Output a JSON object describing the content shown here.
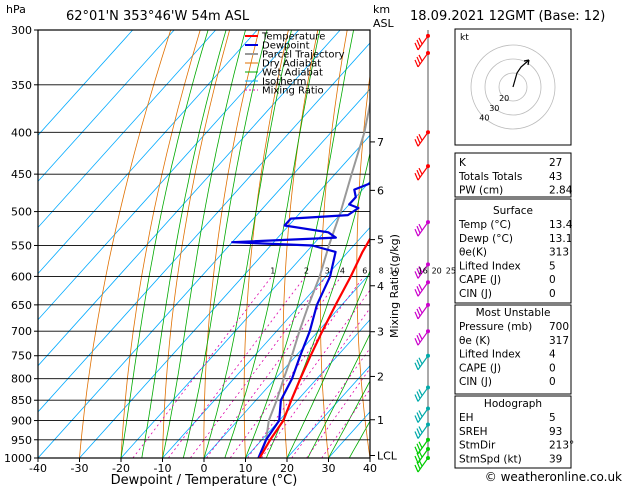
{
  "header": {
    "location": "62°01'N  353°46'W  54m  ASL",
    "datetime": "18.09.2021  12GMT  (Base: 12)",
    "hpa_unit": "hPa",
    "km_unit": "km",
    "asl_unit": "ASL"
  },
  "footer": {
    "copyright": "© weatheronline.co.uk"
  },
  "colors": {
    "temperature": "#ff0000",
    "dewpoint": "#0000dd",
    "parcel": "#999999",
    "dry_adiabat": "#e07000",
    "wet_adiabat": "#00aa00",
    "isotherm": "#00aaff",
    "mixing_ratio": "#dd00aa",
    "wind_cyan": "#00aaaa",
    "wind_green": "#00cc00",
    "wind_magenta": "#cc00cc",
    "wind_red": "#ff0000"
  },
  "chart_data": {
    "type": "skew-t",
    "xlabel": "Dewpoint / Temperature (°C)",
    "ylabel_right": "Mixing Ratio (g/kg)",
    "x_ticks": [
      -40,
      -30,
      -20,
      -10,
      0,
      10,
      20,
      30,
      40
    ],
    "pressure_levels": [
      300,
      350,
      400,
      450,
      500,
      550,
      600,
      650,
      700,
      750,
      800,
      850,
      900,
      950,
      1000
    ],
    "km_ticks": [
      {
        "label": "7",
        "p": 411
      },
      {
        "label": "6",
        "p": 471
      },
      {
        "label": "5",
        "p": 541
      },
      {
        "label": "4",
        "p": 616
      },
      {
        "label": "3",
        "p": 701
      },
      {
        "label": "2",
        "p": 795
      },
      {
        "label": "1",
        "p": 898
      },
      {
        "label": "LCL",
        "p": 993
      }
    ],
    "mixing_ratio_labels": [
      "1",
      "2",
      "3",
      "4",
      "6",
      "8",
      "10",
      "16",
      "20",
      "25"
    ],
    "legend": [
      "Temperature",
      "Dewpoint",
      "Parcel Trajectory",
      "Dry Adiabat",
      "Wet Adiabat",
      "Isotherm",
      "Mixing Ratio"
    ],
    "temperature": [
      [
        1000,
        13.4
      ],
      [
        950,
        12
      ],
      [
        900,
        11
      ],
      [
        850,
        8.5
      ],
      [
        800,
        6
      ],
      [
        750,
        3.5
      ],
      [
        700,
        1
      ],
      [
        650,
        -1.5
      ],
      [
        600,
        -4
      ],
      [
        560,
        -6.5
      ],
      [
        520,
        -8.5
      ],
      [
        500,
        -8
      ],
      [
        490,
        -8
      ],
      [
        480,
        -8.5
      ],
      [
        470,
        -4
      ],
      [
        465,
        -10
      ],
      [
        450,
        -12
      ],
      [
        420,
        -15
      ],
      [
        400,
        -18
      ],
      [
        350,
        -27
      ],
      [
        300,
        -36
      ]
    ],
    "dewpoint": [
      [
        1000,
        13.1
      ],
      [
        950,
        11
      ],
      [
        900,
        10
      ],
      [
        850,
        6
      ],
      [
        800,
        4
      ],
      [
        750,
        1
      ],
      [
        700,
        -2
      ],
      [
        650,
        -6
      ],
      [
        600,
        -9
      ],
      [
        560,
        -13
      ],
      [
        550,
        -20
      ],
      [
        545,
        -40
      ],
      [
        538,
        -16
      ],
      [
        530,
        -19
      ],
      [
        520,
        -31
      ],
      [
        510,
        -31
      ],
      [
        505,
        -18
      ],
      [
        495,
        -17
      ],
      [
        490,
        -20
      ],
      [
        480,
        -20
      ],
      [
        470,
        -22
      ],
      [
        460,
        -19
      ],
      [
        450,
        -20
      ],
      [
        430,
        -20
      ],
      [
        400,
        -26
      ],
      [
        370,
        -33
      ],
      [
        350,
        -34
      ],
      [
        300,
        -43
      ]
    ],
    "parcel": [
      [
        1000,
        13.4
      ],
      [
        950,
        11
      ],
      [
        900,
        7.5
      ],
      [
        850,
        5
      ],
      [
        800,
        2
      ],
      [
        750,
        -1
      ],
      [
        700,
        -4.5
      ],
      [
        650,
        -8
      ],
      [
        600,
        -11.5
      ],
      [
        550,
        -16
      ],
      [
        500,
        -20.5
      ],
      [
        450,
        -26
      ],
      [
        400,
        -32
      ],
      [
        350,
        -40
      ],
      [
        300,
        -48
      ]
    ]
  },
  "hodograph": {
    "label": "kt",
    "ring_labels": [
      "20",
      "30",
      "40"
    ]
  },
  "indices": [
    {
      "k": "K",
      "v": "27"
    },
    {
      "k": "Totals Totals",
      "v": "43"
    },
    {
      "k": "PW (cm)",
      "v": "2.84"
    }
  ],
  "surface": {
    "title": "Surface",
    "rows": [
      {
        "k": "Temp (°C)",
        "v": "13.4"
      },
      {
        "k": "Dewp (°C)",
        "v": "13.1"
      },
      {
        "k": "θe(K)",
        "v": "313"
      },
      {
        "k": "Lifted Index",
        "v": "5"
      },
      {
        "k": "CAPE (J)",
        "v": "0"
      },
      {
        "k": "CIN (J)",
        "v": "0"
      }
    ]
  },
  "most_unstable": {
    "title": "Most Unstable",
    "rows": [
      {
        "k": "Pressure (mb)",
        "v": "700"
      },
      {
        "k": "θe (K)",
        "v": "317"
      },
      {
        "k": "Lifted Index",
        "v": "4"
      },
      {
        "k": "CAPE (J)",
        "v": "0"
      },
      {
        "k": "CIN (J)",
        "v": "0"
      }
    ]
  },
  "hodograph_table": {
    "title": "Hodograph",
    "rows": [
      {
        "k": "EH",
        "v": "5"
      },
      {
        "k": "SREH",
        "v": "93"
      },
      {
        "k": "StmDir",
        "v": "213°"
      },
      {
        "k": "StmSpd (kt)",
        "v": "39"
      }
    ]
  }
}
